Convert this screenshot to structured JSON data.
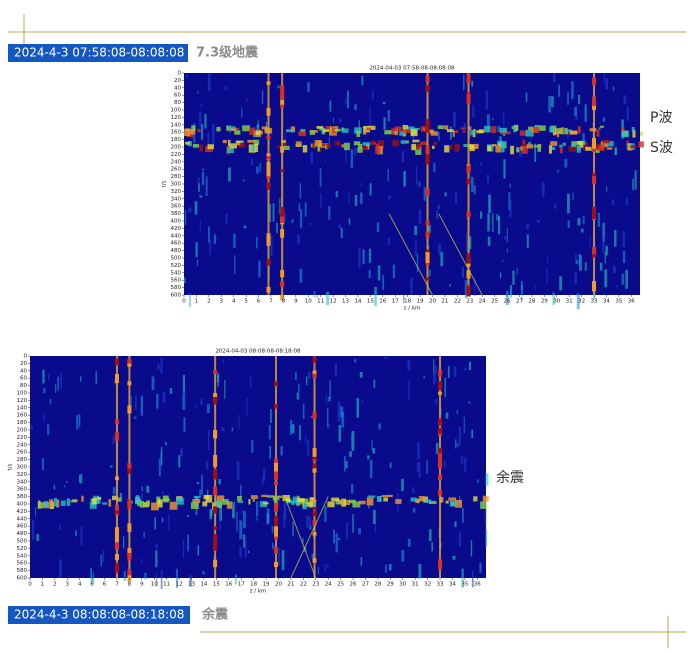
{
  "header": {
    "badge": "2024-4-3 07:58:08-08:08:08",
    "title": "7.3级地震"
  },
  "figures": [
    {
      "title": "2024-04-03 07:58:08-08:08:08",
      "y_label": "t/s",
      "x_label": "z / km",
      "ylim": [
        0,
        600
      ],
      "yticks": [
        0,
        20,
        40,
        60,
        80,
        100,
        120,
        140,
        160,
        180,
        200,
        220,
        240,
        260,
        280,
        300,
        320,
        340,
        360,
        380,
        400,
        420,
        440,
        460,
        480,
        500,
        520,
        540,
        560,
        580,
        600
      ],
      "xlim": [
        0,
        36.7
      ],
      "xticks": [
        0,
        1,
        2,
        3,
        4,
        5,
        6,
        7,
        8,
        9,
        10,
        11,
        12,
        13,
        14,
        15,
        16,
        17,
        18,
        19,
        20,
        21,
        22,
        23,
        24,
        25,
        26,
        27,
        28,
        29,
        30,
        31,
        32,
        33,
        34,
        35,
        36
      ],
      "annotations": [
        "P波",
        "S波"
      ]
    },
    {
      "title": "2024-04-03 08:08:08-08:18:08",
      "y_label": "t/s",
      "x_label": "z / km",
      "ylim": [
        0,
        600
      ],
      "yticks": [
        0,
        20,
        40,
        60,
        80,
        100,
        120,
        140,
        160,
        180,
        200,
        220,
        240,
        260,
        280,
        300,
        320,
        340,
        360,
        380,
        400,
        420,
        440,
        460,
        480,
        500,
        520,
        540,
        560,
        580,
        600
      ],
      "xlim": [
        0,
        36.7
      ],
      "xticks": [
        0,
        1,
        2,
        3,
        4,
        5,
        6,
        7,
        8,
        9,
        10,
        11,
        12,
        13,
        14,
        15,
        16,
        17,
        18,
        19,
        20,
        21,
        22,
        23,
        24,
        25,
        26,
        27,
        28,
        29,
        30,
        31,
        32,
        33,
        34,
        35,
        36
      ],
      "annotations": [
        "余震"
      ]
    }
  ],
  "footer": {
    "badge": "2024-4-3 08:08:08-08:18:08",
    "title": "余震"
  }
}
